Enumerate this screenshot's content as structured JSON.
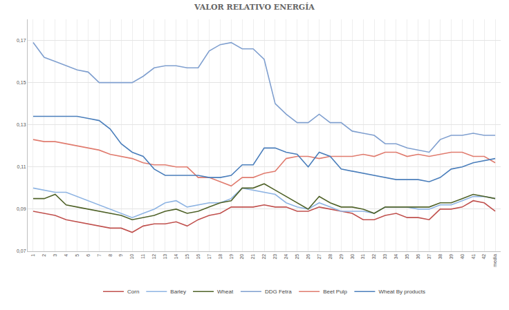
{
  "chart_data": {
    "type": "line",
    "title": "VALOR RELATIVO ENERGÍA",
    "categories": [
      "1",
      "2",
      "3",
      "4",
      "5",
      "6",
      "7",
      "8",
      "9",
      "10",
      "11",
      "12",
      "13",
      "14",
      "15",
      "16",
      "17",
      "18",
      "19",
      "20",
      "21",
      "22",
      "23",
      "24",
      "25",
      "26",
      "27",
      "28",
      "29",
      "30",
      "31",
      "32",
      "33",
      "34",
      "35",
      "36",
      "37",
      "38",
      "39",
      "40",
      "41",
      "42",
      "media"
    ],
    "series": [
      {
        "name": "Corn",
        "color": "#c0504d",
        "values": [
          0.089,
          0.088,
          0.087,
          0.085,
          0.084,
          0.083,
          0.082,
          0.081,
          0.081,
          0.079,
          0.082,
          0.083,
          0.083,
          0.084,
          0.082,
          0.085,
          0.087,
          0.088,
          0.091,
          0.091,
          0.091,
          0.092,
          0.091,
          0.091,
          0.089,
          0.089,
          0.091,
          0.09,
          0.089,
          0.088,
          0.085,
          0.085,
          0.087,
          0.088,
          0.086,
          0.086,
          0.085,
          0.09,
          0.09,
          0.091,
          0.094,
          0.093,
          0.089
        ]
      },
      {
        "name": "Barley",
        "color": "#8eb4e3",
        "values": [
          0.1,
          0.099,
          0.098,
          0.098,
          0.096,
          0.094,
          0.092,
          0.09,
          0.088,
          0.086,
          0.088,
          0.09,
          0.093,
          0.094,
          0.091,
          0.092,
          0.093,
          0.093,
          0.095,
          0.1,
          0.099,
          0.098,
          0.097,
          0.093,
          0.091,
          0.09,
          0.093,
          0.091,
          0.089,
          0.089,
          0.089,
          0.088,
          0.091,
          0.091,
          0.091,
          0.09,
          0.09,
          0.092,
          0.092,
          0.094,
          0.096,
          0.096,
          0.095
        ]
      },
      {
        "name": "Wheat",
        "color": "#4f6228",
        "values": [
          0.095,
          0.095,
          0.097,
          0.092,
          0.091,
          0.09,
          0.089,
          0.088,
          0.087,
          0.085,
          0.086,
          0.087,
          0.089,
          0.09,
          0.088,
          0.089,
          0.091,
          0.093,
          0.094,
          0.1,
          0.1,
          0.102,
          0.099,
          0.096,
          0.093,
          0.09,
          0.096,
          0.093,
          0.091,
          0.091,
          0.09,
          0.088,
          0.091,
          0.091,
          0.091,
          0.091,
          0.091,
          0.093,
          0.093,
          0.095,
          0.097,
          0.096,
          0.095
        ]
      },
      {
        "name": "DDG Fetra",
        "color": "#7f9fcf",
        "values": [
          0.169,
          0.162,
          0.16,
          0.158,
          0.156,
          0.155,
          0.15,
          0.15,
          0.15,
          0.15,
          0.153,
          0.157,
          0.158,
          0.158,
          0.157,
          0.157,
          0.165,
          0.168,
          0.169,
          0.166,
          0.166,
          0.161,
          0.14,
          0.135,
          0.131,
          0.131,
          0.135,
          0.131,
          0.131,
          0.127,
          0.126,
          0.125,
          0.121,
          0.121,
          0.119,
          0.118,
          0.117,
          0.123,
          0.125,
          0.125,
          0.126,
          0.125,
          0.125
        ]
      },
      {
        "name": "Beet Pulp",
        "color": "#e07b6e",
        "values": [
          0.123,
          0.122,
          0.122,
          0.121,
          0.12,
          0.119,
          0.118,
          0.116,
          0.115,
          0.114,
          0.112,
          0.111,
          0.111,
          0.11,
          0.11,
          0.105,
          0.105,
          0.103,
          0.101,
          0.105,
          0.105,
          0.107,
          0.108,
          0.114,
          0.115,
          0.115,
          0.114,
          0.115,
          0.115,
          0.115,
          0.116,
          0.115,
          0.117,
          0.117,
          0.115,
          0.116,
          0.115,
          0.116,
          0.117,
          0.117,
          0.115,
          0.115,
          0.112
        ]
      },
      {
        "name": "Wheat By products",
        "color": "#4a7ebb",
        "values": [
          0.134,
          0.134,
          0.134,
          0.134,
          0.134,
          0.133,
          0.132,
          0.128,
          0.121,
          0.117,
          0.115,
          0.109,
          0.106,
          0.106,
          0.106,
          0.106,
          0.105,
          0.105,
          0.106,
          0.111,
          0.111,
          0.119,
          0.119,
          0.117,
          0.116,
          0.11,
          0.117,
          0.115,
          0.109,
          0.108,
          0.107,
          0.106,
          0.105,
          0.104,
          0.104,
          0.104,
          0.103,
          0.105,
          0.109,
          0.11,
          0.112,
          0.113,
          0.114
        ]
      }
    ],
    "ylim": [
      0.07,
      0.18
    ],
    "yticks": [
      {
        "value": 0.07,
        "label": "0,07"
      },
      {
        "value": 0.09,
        "label": "0,09"
      },
      {
        "value": 0.11,
        "label": "0,11"
      },
      {
        "value": 0.13,
        "label": "0,13"
      },
      {
        "value": 0.15,
        "label": "0,15"
      },
      {
        "value": 0.17,
        "label": "0,17"
      }
    ],
    "grid": true,
    "legend": "bottom"
  }
}
